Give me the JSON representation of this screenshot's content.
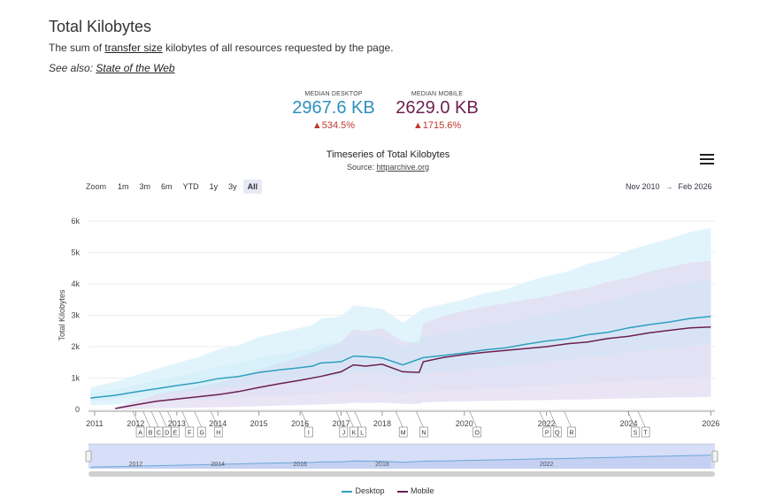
{
  "header": {
    "title": "Total Kilobytes",
    "desc_prefix": "The sum of ",
    "desc_link": "transfer size",
    "desc_suffix": " kilobytes of all resources requested by the page.",
    "seealso_prefix": "See also: ",
    "seealso_link": "State of the Web"
  },
  "kpis": {
    "desktop": {
      "label": "MEDIAN DESKTOP",
      "value": "2967.6 KB",
      "change": "▲534.5%"
    },
    "mobile": {
      "label": "MEDIAN MOBILE",
      "value": "2629.0 KB",
      "change": "▲1715.6%"
    }
  },
  "chart_header": {
    "title": "Timeseries of Total Kilobytes",
    "source_prefix": "Source: ",
    "source_link": "httparchive.org"
  },
  "zoom": {
    "label": "Zoom",
    "buttons": [
      "1m",
      "3m",
      "6m",
      "YTD",
      "1y",
      "3y",
      "All"
    ],
    "active": "All"
  },
  "range": {
    "from": "Nov 2010",
    "separator": "→",
    "to": "Feb 2026"
  },
  "legend": {
    "desktop": "Desktop",
    "mobile": "Mobile"
  },
  "colors": {
    "desktop": "#2f9fbf",
    "mobile": "#6b1f4f",
    "desktop_band_outer": "#dff3fb",
    "desktop_band_inner": "#c5e8f6",
    "mobile_band": "#e1dcf1",
    "navigator_fill": "#ccd6f6"
  },
  "chart_data": {
    "type": "area",
    "title": "Timeseries of Total Kilobytes",
    "ylabel": "Total Kilobytes",
    "yticks": [
      "0",
      "1k",
      "2k",
      "3k",
      "4k",
      "5k",
      "6k"
    ],
    "ylim": [
      0,
      6000
    ],
    "xlim": [
      2010.85,
      2026.1
    ],
    "xticks": [
      "2011",
      "2012",
      "2013",
      "2014",
      "2015",
      "2016",
      "2017",
      "2018",
      "2020",
      "2022",
      "2024",
      "2026"
    ],
    "navigator_ticks": [
      "2012",
      "2014",
      "2016",
      "2018",
      "2022"
    ],
    "annotations": [
      "A",
      "B",
      "C",
      "D",
      "E",
      "F",
      "G",
      "H",
      "I",
      "J",
      "K",
      "L",
      "M",
      "N",
      "O",
      "P",
      "Q",
      "R",
      "S",
      "T"
    ],
    "series": [
      {
        "name": "Desktop",
        "x": [
          2010.9,
          2011.0,
          2011.5,
          2012.0,
          2012.5,
          2013.0,
          2013.5,
          2014.0,
          2014.5,
          2015.0,
          2015.5,
          2016.0,
          2016.3,
          2016.5,
          2017.0,
          2017.3,
          2017.6,
          2018.0,
          2018.5,
          2019.0,
          2019.5,
          2020.0,
          2020.5,
          2021.0,
          2021.5,
          2022.0,
          2022.5,
          2023.0,
          2023.5,
          2024.0,
          2024.5,
          2025.0,
          2025.5,
          2026.0
        ],
        "values": [
          360,
          380,
          450,
          560,
          660,
          760,
          850,
          980,
          1050,
          1180,
          1260,
          1330,
          1380,
          1480,
          1520,
          1700,
          1680,
          1640,
          1420,
          1650,
          1720,
          1800,
          1900,
          1960,
          2080,
          2180,
          2250,
          2380,
          2460,
          2600,
          2700,
          2790,
          2900,
          2967
        ]
      },
      {
        "name": "Mobile",
        "x": [
          2011.5,
          2012.0,
          2012.5,
          2013.0,
          2013.5,
          2014.0,
          2014.5,
          2015.0,
          2015.5,
          2016.0,
          2016.5,
          2017.0,
          2017.3,
          2017.6,
          2018.0,
          2018.5,
          2018.9,
          2019.0,
          2019.5,
          2020.0,
          2020.5,
          2021.0,
          2021.5,
          2022.0,
          2022.5,
          2023.0,
          2023.5,
          2024.0,
          2024.5,
          2025.0,
          2025.5,
          2026.0
        ],
        "values": [
          30,
          150,
          260,
          330,
          400,
          470,
          570,
          700,
          820,
          930,
          1050,
          1200,
          1420,
          1380,
          1440,
          1200,
          1180,
          1520,
          1660,
          1750,
          1820,
          1880,
          1940,
          2000,
          2090,
          2150,
          2260,
          2330,
          2440,
          2520,
          2600,
          2629
        ]
      }
    ]
  }
}
